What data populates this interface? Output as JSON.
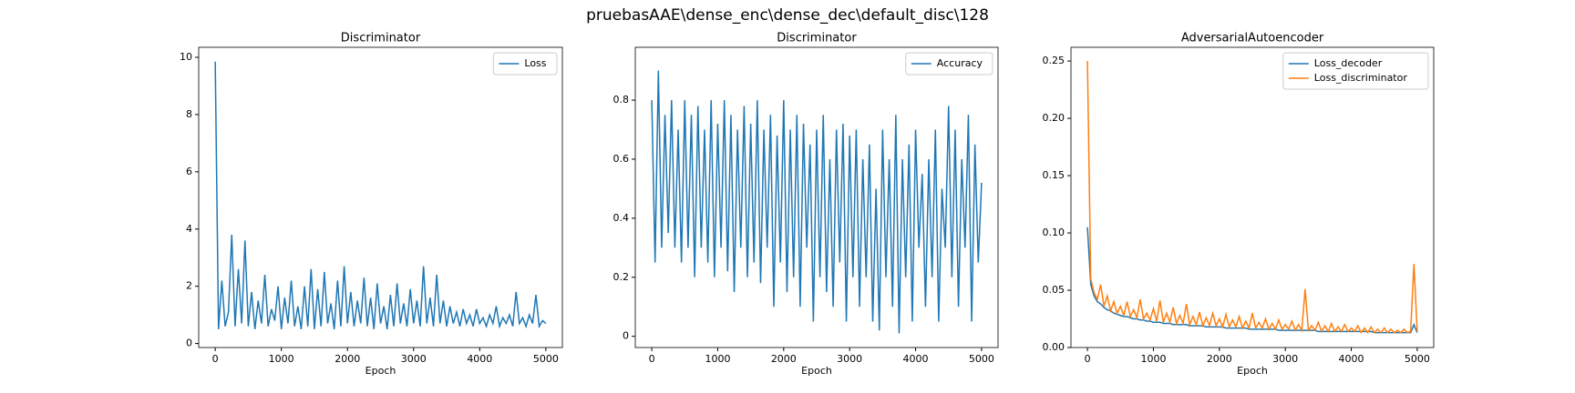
{
  "suptitle": "pruebasAAE\\dense_enc\\dense_dec\\default_disc\\128",
  "chart_data": [
    {
      "type": "line",
      "title": "Discriminator",
      "xlabel": "Epoch",
      "legend": "upper right",
      "xlim": [
        -250,
        5250
      ],
      "xticks": [
        0,
        1000,
        2000,
        3000,
        4000,
        5000
      ],
      "ylim": [
        -0.14,
        10.35
      ],
      "yticks": [
        0,
        2,
        4,
        6,
        8,
        10
      ],
      "x": [
        0,
        50,
        100,
        150,
        200,
        250,
        300,
        350,
        400,
        450,
        500,
        550,
        600,
        650,
        700,
        750,
        800,
        850,
        900,
        950,
        1000,
        1050,
        1100,
        1150,
        1200,
        1250,
        1300,
        1350,
        1400,
        1450,
        1500,
        1550,
        1600,
        1650,
        1700,
        1750,
        1800,
        1850,
        1900,
        1950,
        2000,
        2050,
        2100,
        2150,
        2200,
        2250,
        2300,
        2350,
        2400,
        2450,
        2500,
        2550,
        2600,
        2650,
        2700,
        2750,
        2800,
        2850,
        2900,
        2950,
        3000,
        3050,
        3100,
        3150,
        3200,
        3250,
        3300,
        3350,
        3400,
        3450,
        3500,
        3550,
        3600,
        3650,
        3700,
        3750,
        3800,
        3850,
        3900,
        3950,
        4000,
        4050,
        4100,
        4150,
        4200,
        4250,
        4300,
        4350,
        4400,
        4450,
        4500,
        4550,
        4600,
        4650,
        4700,
        4750,
        4800,
        4850,
        4900,
        4950,
        5000
      ],
      "series": [
        {
          "name": "Loss",
          "color": "#1f77b4",
          "values": [
            9.85,
            0.5,
            2.2,
            0.6,
            1.1,
            3.8,
            0.6,
            2.6,
            0.7,
            3.6,
            0.6,
            1.8,
            0.5,
            1.5,
            0.7,
            2.4,
            0.6,
            1.2,
            0.8,
            2.0,
            0.5,
            1.6,
            0.7,
            2.2,
            0.6,
            1.3,
            0.5,
            2.0,
            0.6,
            2.6,
            0.5,
            1.9,
            0.6,
            2.5,
            0.7,
            1.4,
            0.5,
            2.2,
            0.6,
            2.7,
            0.7,
            1.8,
            0.6,
            1.5,
            0.7,
            2.3,
            0.6,
            1.6,
            0.5,
            2.1,
            0.7,
            1.3,
            0.5,
            1.7,
            0.6,
            2.1,
            0.7,
            1.4,
            0.6,
            1.9,
            0.7,
            1.5,
            0.6,
            2.7,
            0.7,
            1.6,
            0.6,
            2.4,
            0.7,
            1.5,
            0.6,
            1.3,
            0.7,
            1.1,
            0.6,
            1.2,
            0.7,
            1.0,
            0.6,
            1.2,
            0.7,
            0.9,
            0.6,
            1.0,
            0.7,
            1.3,
            0.6,
            0.9,
            0.7,
            1.0,
            0.6,
            1.8,
            0.7,
            0.9,
            0.6,
            1.0,
            0.7,
            1.7,
            0.6,
            0.8,
            0.7
          ]
        }
      ]
    },
    {
      "type": "line",
      "title": "Discriminator",
      "xlabel": "Epoch",
      "legend": "upper right",
      "xlim": [
        -250,
        5250
      ],
      "xticks": [
        0,
        1000,
        2000,
        3000,
        4000,
        5000
      ],
      "ylim": [
        -0.038,
        0.979
      ],
      "yticks": [
        0.0,
        0.2,
        0.4,
        0.6,
        0.8
      ],
      "x": [
        0,
        50,
        100,
        150,
        200,
        250,
        300,
        350,
        400,
        450,
        500,
        550,
        600,
        650,
        700,
        750,
        800,
        850,
        900,
        950,
        1000,
        1050,
        1100,
        1150,
        1200,
        1250,
        1300,
        1350,
        1400,
        1450,
        1500,
        1550,
        1600,
        1650,
        1700,
        1750,
        1800,
        1850,
        1900,
        1950,
        2000,
        2050,
        2100,
        2150,
        2200,
        2250,
        2300,
        2350,
        2400,
        2450,
        2500,
        2550,
        2600,
        2650,
        2700,
        2750,
        2800,
        2850,
        2900,
        2950,
        3000,
        3050,
        3100,
        3150,
        3200,
        3250,
        3300,
        3350,
        3400,
        3450,
        3500,
        3550,
        3600,
        3650,
        3700,
        3750,
        3800,
        3850,
        3900,
        3950,
        4000,
        4050,
        4100,
        4150,
        4200,
        4250,
        4300,
        4350,
        4400,
        4450,
        4500,
        4550,
        4600,
        4650,
        4700,
        4750,
        4800,
        4850,
        4900,
        4950,
        5000
      ],
      "series": [
        {
          "name": "Accuracy",
          "color": "#1f77b4",
          "values": [
            0.8,
            0.25,
            0.9,
            0.3,
            0.75,
            0.35,
            0.8,
            0.3,
            0.7,
            0.25,
            0.8,
            0.3,
            0.75,
            0.2,
            0.78,
            0.3,
            0.7,
            0.25,
            0.8,
            0.2,
            0.72,
            0.3,
            0.8,
            0.22,
            0.75,
            0.15,
            0.7,
            0.3,
            0.78,
            0.2,
            0.72,
            0.25,
            0.8,
            0.18,
            0.7,
            0.3,
            0.75,
            0.1,
            0.68,
            0.25,
            0.8,
            0.15,
            0.7,
            0.2,
            0.75,
            0.1,
            0.72,
            0.3,
            0.65,
            0.05,
            0.7,
            0.2,
            0.75,
            0.15,
            0.6,
            0.1,
            0.7,
            0.25,
            0.72,
            0.05,
            0.68,
            0.2,
            0.7,
            0.1,
            0.6,
            0.2,
            0.65,
            0.05,
            0.5,
            0.02,
            0.7,
            0.2,
            0.6,
            0.1,
            0.75,
            0.01,
            0.6,
            0.2,
            0.65,
            0.05,
            0.7,
            0.3,
            0.55,
            0.1,
            0.6,
            0.2,
            0.7,
            0.05,
            0.5,
            0.3,
            0.78,
            0.2,
            0.7,
            0.1,
            0.6,
            0.3,
            0.75,
            0.05,
            0.65,
            0.25,
            0.52
          ]
        }
      ]
    },
    {
      "type": "line",
      "title": "AdversarialAutoencoder",
      "xlabel": "Epoch",
      "legend": "upper right",
      "xlim": [
        -250,
        5250
      ],
      "xticks": [
        0,
        1000,
        2000,
        3000,
        4000,
        5000
      ],
      "ylim": [
        0.0,
        0.262
      ],
      "yticks": [
        {
          "value": 0,
          "label": "0.00"
        },
        {
          "value": 0.05,
          "label": "0.05"
        },
        {
          "value": 0.1,
          "label": "0.10"
        },
        {
          "value": 0.15,
          "label": "0.15"
        },
        {
          "value": 0.2,
          "label": "0.20"
        },
        {
          "value": 0.25,
          "label": "0.25"
        }
      ],
      "x": [
        0,
        50,
        100,
        150,
        200,
        250,
        300,
        350,
        400,
        450,
        500,
        550,
        600,
        650,
        700,
        750,
        800,
        850,
        900,
        950,
        1000,
        1050,
        1100,
        1150,
        1200,
        1250,
        1300,
        1350,
        1400,
        1450,
        1500,
        1550,
        1600,
        1650,
        1700,
        1750,
        1800,
        1850,
        1900,
        1950,
        2000,
        2050,
        2100,
        2150,
        2200,
        2250,
        2300,
        2350,
        2400,
        2450,
        2500,
        2550,
        2600,
        2650,
        2700,
        2750,
        2800,
        2850,
        2900,
        2950,
        3000,
        3050,
        3100,
        3150,
        3200,
        3250,
        3300,
        3350,
        3400,
        3450,
        3500,
        3550,
        3600,
        3650,
        3700,
        3750,
        3800,
        3850,
        3900,
        3950,
        4000,
        4050,
        4100,
        4150,
        4200,
        4250,
        4300,
        4350,
        4400,
        4450,
        4500,
        4550,
        4600,
        4650,
        4700,
        4750,
        4800,
        4850,
        4900,
        4950,
        5000
      ],
      "series": [
        {
          "name": "Loss_decoder",
          "color": "#1f77b4",
          "values": [
            0.105,
            0.055,
            0.045,
            0.04,
            0.038,
            0.035,
            0.033,
            0.032,
            0.03,
            0.029,
            0.028,
            0.027,
            0.027,
            0.026,
            0.025,
            0.025,
            0.024,
            0.024,
            0.023,
            0.023,
            0.022,
            0.022,
            0.022,
            0.021,
            0.021,
            0.021,
            0.02,
            0.02,
            0.02,
            0.02,
            0.02,
            0.019,
            0.019,
            0.019,
            0.019,
            0.019,
            0.018,
            0.018,
            0.018,
            0.018,
            0.018,
            0.018,
            0.017,
            0.017,
            0.017,
            0.017,
            0.017,
            0.017,
            0.017,
            0.016,
            0.016,
            0.016,
            0.016,
            0.016,
            0.016,
            0.016,
            0.016,
            0.016,
            0.015,
            0.015,
            0.015,
            0.015,
            0.015,
            0.015,
            0.015,
            0.015,
            0.015,
            0.015,
            0.015,
            0.015,
            0.014,
            0.014,
            0.014,
            0.014,
            0.014,
            0.014,
            0.014,
            0.014,
            0.014,
            0.014,
            0.014,
            0.014,
            0.014,
            0.014,
            0.014,
            0.014,
            0.014,
            0.013,
            0.013,
            0.013,
            0.013,
            0.013,
            0.013,
            0.013,
            0.013,
            0.013,
            0.013,
            0.013,
            0.013,
            0.02,
            0.013
          ]
        },
        {
          "name": "Loss_discriminator",
          "color": "#ff7f0e",
          "values": [
            0.25,
            0.06,
            0.048,
            0.042,
            0.055,
            0.036,
            0.045,
            0.032,
            0.04,
            0.03,
            0.036,
            0.028,
            0.04,
            0.027,
            0.033,
            0.026,
            0.042,
            0.025,
            0.03,
            0.024,
            0.034,
            0.023,
            0.041,
            0.022,
            0.03,
            0.022,
            0.035,
            0.021,
            0.028,
            0.021,
            0.038,
            0.02,
            0.027,
            0.02,
            0.031,
            0.019,
            0.026,
            0.019,
            0.03,
            0.019,
            0.025,
            0.018,
            0.029,
            0.018,
            0.024,
            0.018,
            0.027,
            0.017,
            0.023,
            0.017,
            0.03,
            0.017,
            0.022,
            0.017,
            0.025,
            0.016,
            0.021,
            0.016,
            0.024,
            0.016,
            0.02,
            0.016,
            0.023,
            0.015,
            0.02,
            0.015,
            0.051,
            0.015,
            0.019,
            0.015,
            0.022,
            0.014,
            0.019,
            0.014,
            0.021,
            0.014,
            0.018,
            0.014,
            0.02,
            0.014,
            0.017,
            0.014,
            0.019,
            0.013,
            0.017,
            0.013,
            0.018,
            0.013,
            0.016,
            0.013,
            0.017,
            0.013,
            0.016,
            0.013,
            0.015,
            0.013,
            0.016,
            0.013,
            0.014,
            0.073,
            0.014
          ]
        }
      ]
    }
  ]
}
